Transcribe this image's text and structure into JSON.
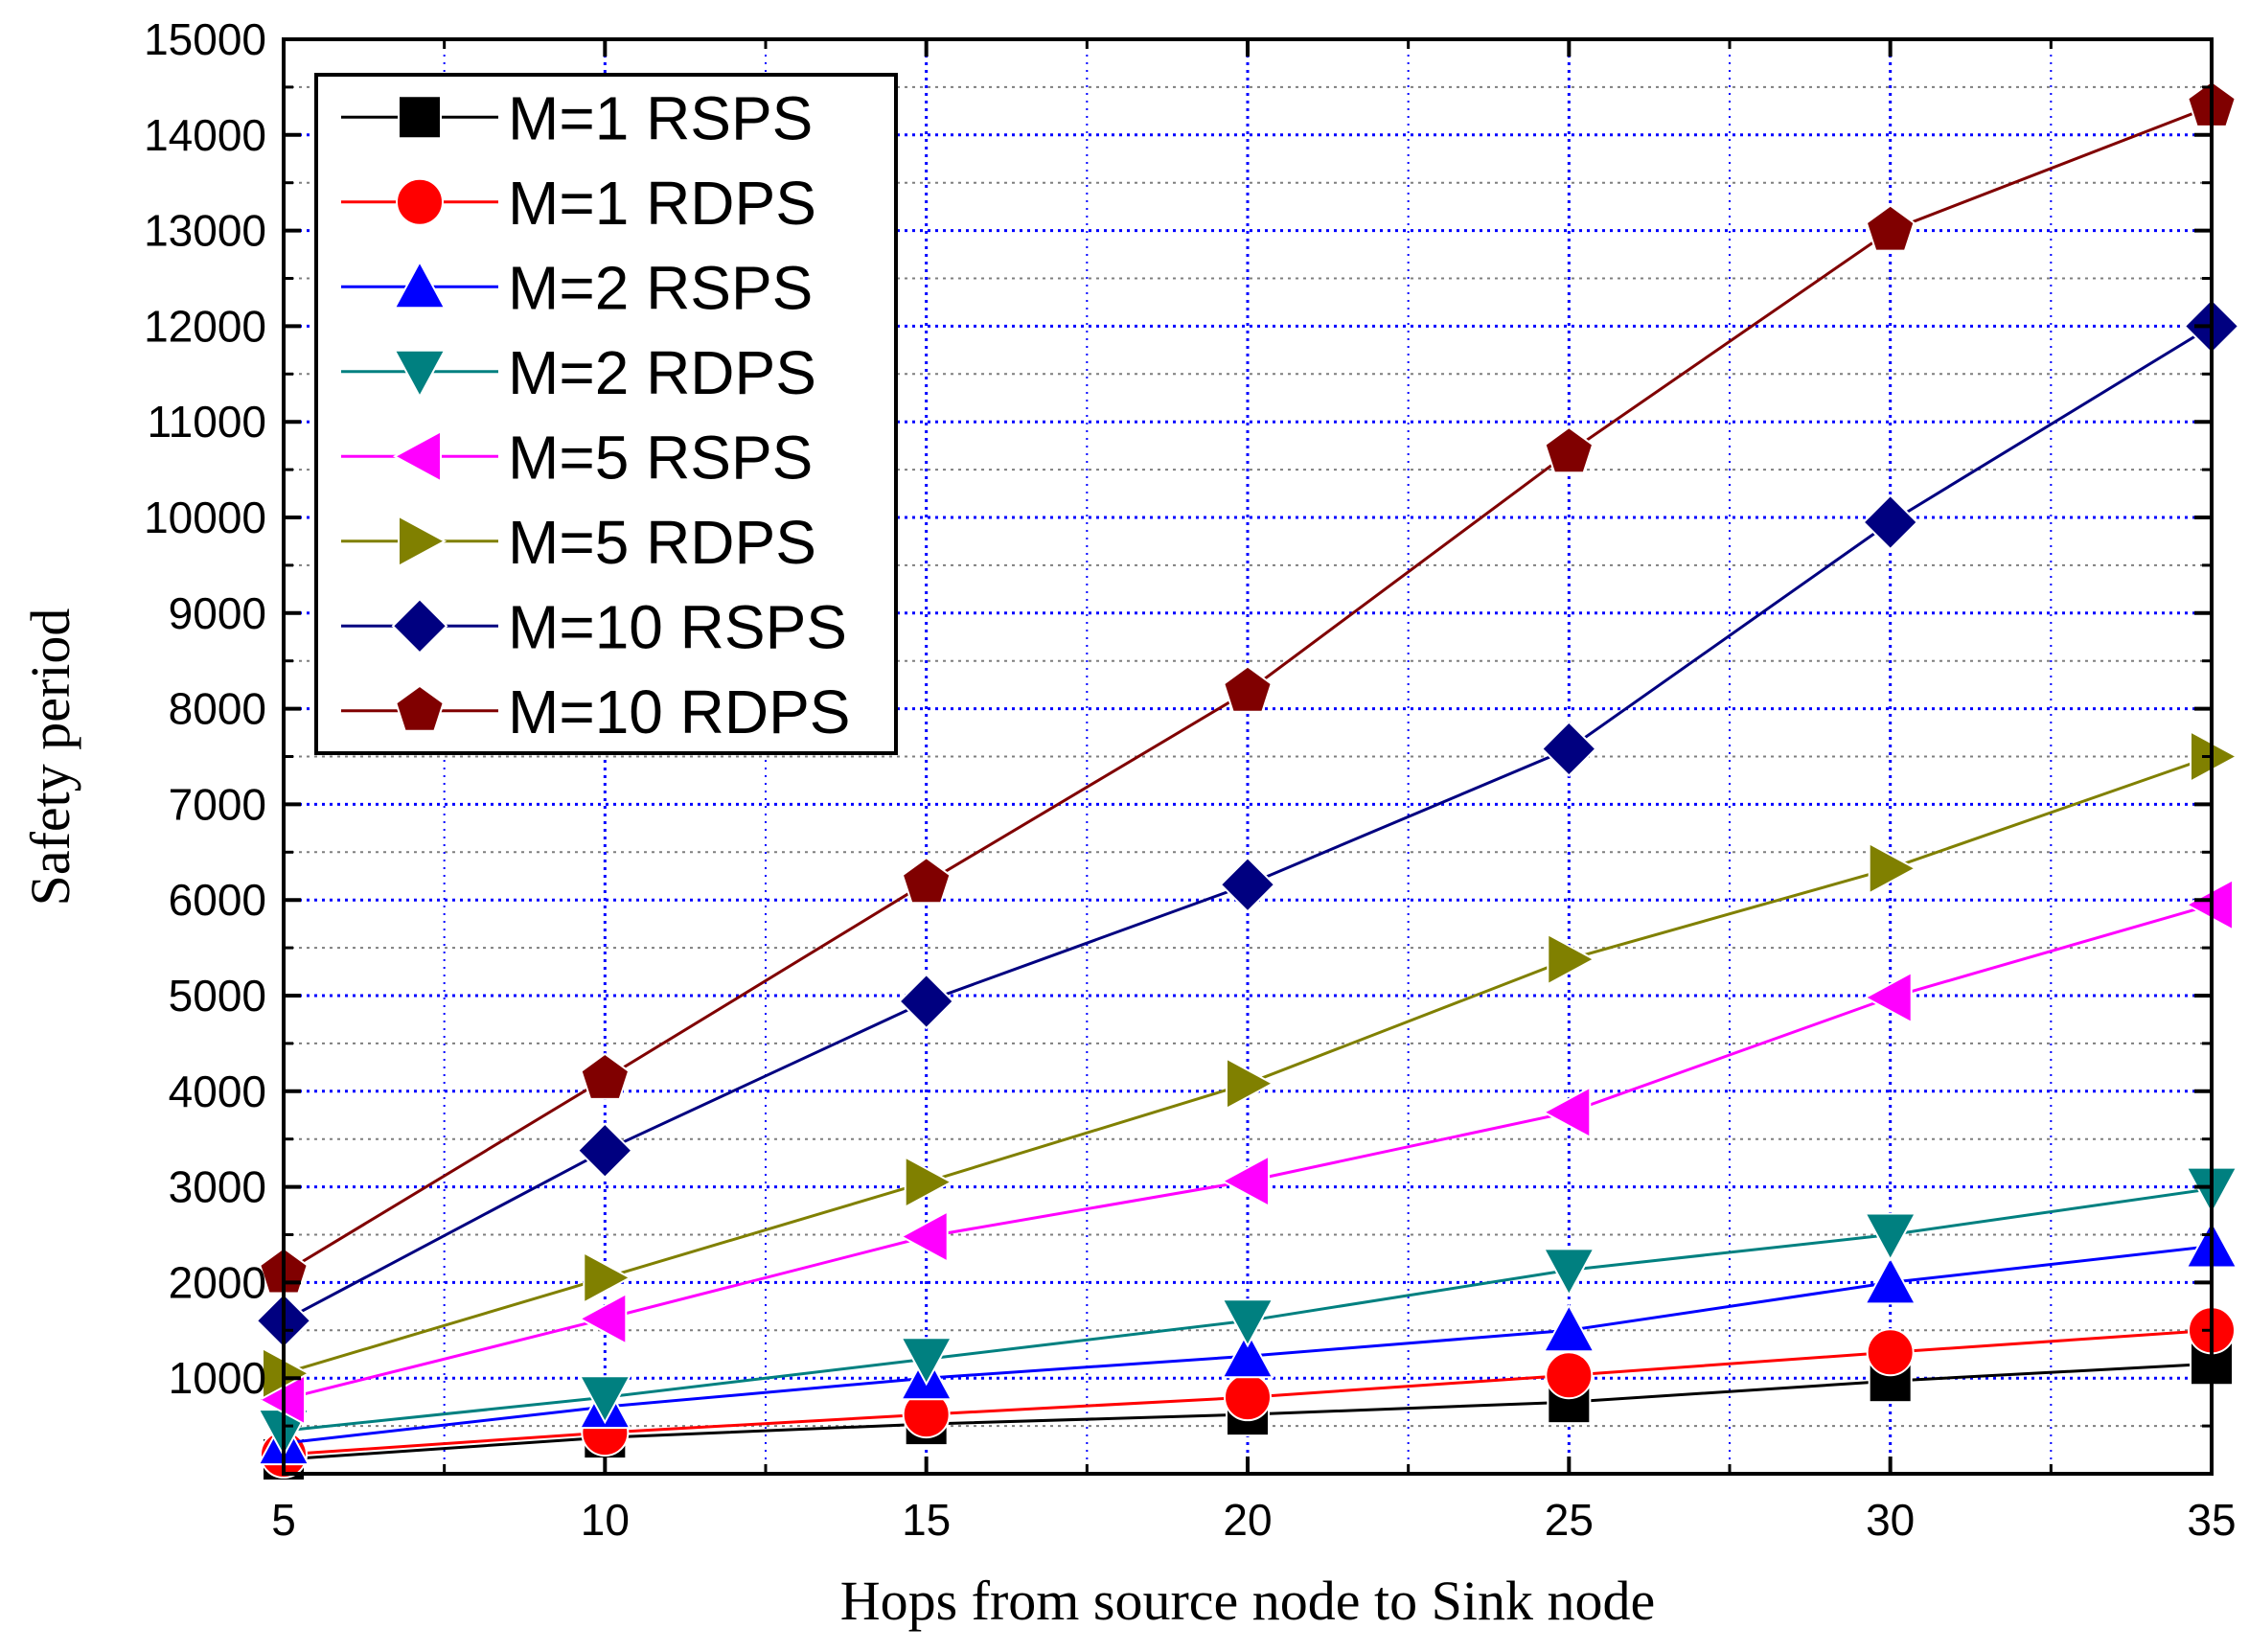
{
  "chart_data": {
    "type": "line",
    "title": "",
    "xlabel": "Hops from source node to Sink node",
    "ylabel": "Safety period",
    "xlim": [
      5,
      35
    ],
    "ylim": [
      0,
      15000
    ],
    "x_ticks": [
      5,
      10,
      15,
      20,
      25,
      30,
      35
    ],
    "x_tick_labels": [
      "5",
      "10",
      "15",
      "20",
      "25",
      "30",
      "35"
    ],
    "y_ticks": [
      1000,
      2000,
      3000,
      4000,
      5000,
      6000,
      7000,
      8000,
      9000,
      10000,
      11000,
      12000,
      13000,
      14000,
      15000
    ],
    "y_tick_labels": [
      "1000",
      "2000",
      "3000",
      "4000",
      "5000",
      "6000",
      "7000",
      "8000",
      "9000",
      "10000",
      "11000",
      "12000",
      "13000",
      "14000",
      "15000"
    ],
    "grid": true,
    "legend_position": "top-left",
    "x": [
      5,
      10,
      15,
      20,
      25,
      30,
      35
    ],
    "series": [
      {
        "name": "M=1 RSPS",
        "color": "#000000",
        "marker": "square",
        "values": [
          150,
          380,
          520,
          620,
          750,
          970,
          1150
        ]
      },
      {
        "name": "M=1 RDPS",
        "color": "#ff0000",
        "marker": "circle",
        "values": [
          200,
          430,
          620,
          800,
          1030,
          1270,
          1500
        ]
      },
      {
        "name": "M=2 RSPS",
        "color": "#0000ff",
        "marker": "triangle-up",
        "values": [
          320,
          700,
          1000,
          1230,
          1500,
          2000,
          2380
        ]
      },
      {
        "name": "M=2 RDPS",
        "color": "#008080",
        "marker": "triangle-down",
        "values": [
          450,
          800,
          1200,
          1600,
          2130,
          2500,
          2980
        ]
      },
      {
        "name": "M=5 RSPS",
        "color": "#ff00ff",
        "marker": "triangle-left",
        "values": [
          780,
          1620,
          2480,
          3060,
          3780,
          4980,
          5950
        ]
      },
      {
        "name": "M=5 RDPS",
        "color": "#808000",
        "marker": "triangle-right",
        "values": [
          1050,
          2050,
          3050,
          4080,
          5380,
          6330,
          7500
        ]
      },
      {
        "name": "M=10 RSPS",
        "color": "#000080",
        "marker": "diamond",
        "values": [
          1600,
          3380,
          4940,
          6160,
          7580,
          9950,
          12000
        ]
      },
      {
        "name": "M=10 RDPS",
        "color": "#800000",
        "marker": "pentagon",
        "values": [
          2100,
          4130,
          6180,
          8180,
          10680,
          13000,
          14300
        ]
      }
    ]
  }
}
